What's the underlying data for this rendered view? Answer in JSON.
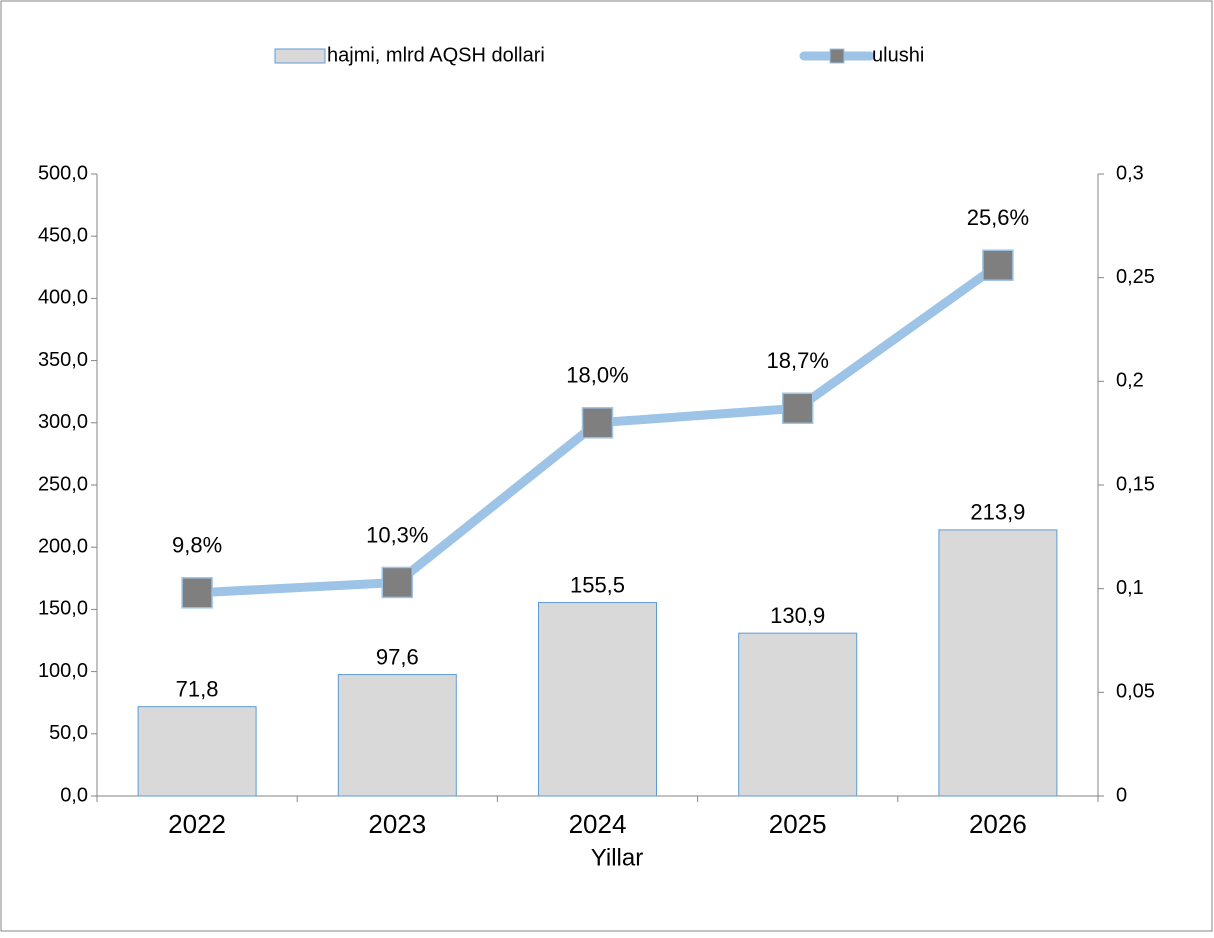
{
  "chart_data": {
    "type": "bar_line",
    "x_label": "Yillar",
    "categories": [
      "2022",
      "2023",
      "2024",
      "2025",
      "2026"
    ],
    "series": [
      {
        "name": "hajmi, mlrd AQSH dollari",
        "type": "bar",
        "color": "#d9d9d9",
        "edge_color": "#5b9bd5",
        "values": [
          71.8,
          97.6,
          155.5,
          130.9,
          213.9
        ],
        "value_labels": [
          "71,8",
          "97,6",
          "155,5",
          "130,9",
          "213,9"
        ]
      },
      {
        "name": "ulushi",
        "type": "line",
        "axis": "y2",
        "color": "#9dc3e6",
        "marker_color": "#7f7f7f",
        "values": [
          0.098,
          0.103,
          0.18,
          0.187,
          0.256
        ],
        "value_labels": [
          "9,8%",
          "10,3%",
          "18,0%",
          "18,7%",
          "25,6%"
        ]
      }
    ],
    "ylim": [
      0,
      500
    ],
    "yticks": [
      {
        "value": 0,
        "label": "0,0"
      },
      {
        "value": 50,
        "label": "50,0"
      },
      {
        "value": 100,
        "label": "100,0"
      },
      {
        "value": 150,
        "label": "150,0"
      },
      {
        "value": 200,
        "label": "200,0"
      },
      {
        "value": 250,
        "label": "250,0"
      },
      {
        "value": 300,
        "label": "300,0"
      },
      {
        "value": 350,
        "label": "350,0"
      },
      {
        "value": 400,
        "label": "400,0"
      },
      {
        "value": 450,
        "label": "450,0"
      },
      {
        "value": 500,
        "label": "500,0"
      }
    ],
    "y2lim": [
      0,
      0.3
    ],
    "y2ticks": [
      0,
      {
        "value": 0.05,
        "label": "0,05"
      },
      {
        "value": 0.1,
        "label": "0,1"
      },
      {
        "value": 0.15,
        "label": "0,15"
      },
      {
        "value": 0.2,
        "label": "0,2"
      },
      {
        "value": 0.25,
        "label": "0,25"
      },
      {
        "value": 0.3,
        "label": "0,3"
      }
    ],
    "grid": false,
    "legend": "top"
  }
}
